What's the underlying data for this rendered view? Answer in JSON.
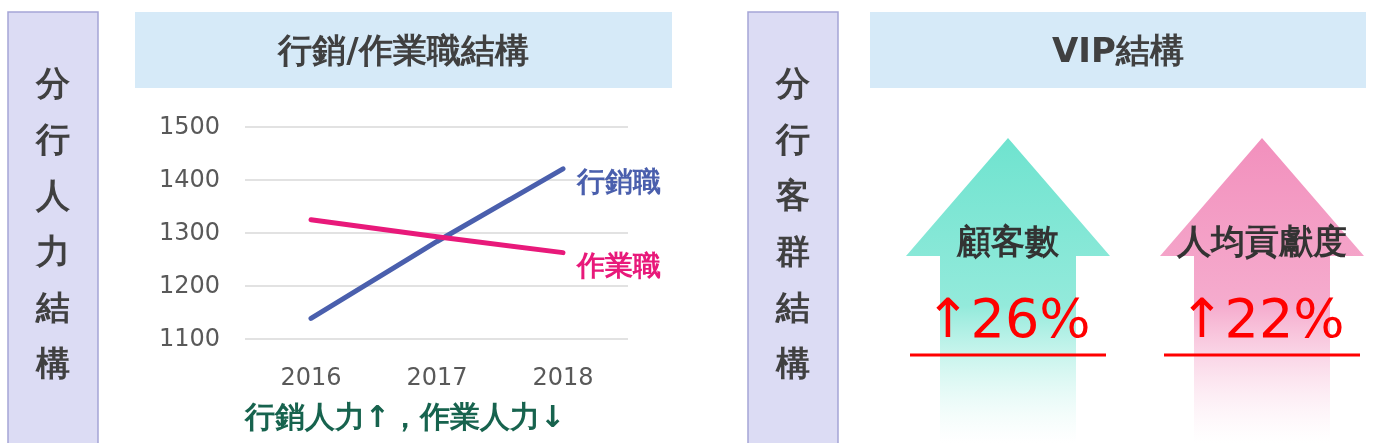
{
  "chart_data": [
    {
      "type": "line",
      "title": "行銷/作業職結構",
      "categories": [
        "2016",
        "2017",
        "2018"
      ],
      "ylim": [
        1100,
        1500
      ],
      "yticks": [
        1100,
        1200,
        1300,
        1400,
        1500
      ],
      "grid": "y",
      "series": [
        {
          "name": "行銷職",
          "color": "#4a5fad",
          "values": [
            1139,
            1284,
            1421
          ]
        },
        {
          "name": "作業職",
          "color": "#e8197a",
          "values": [
            1325,
            1293,
            1263
          ]
        }
      ],
      "annotations": [
        "分行人力結構",
        "行銷人力↑，作業人力↓"
      ]
    },
    {
      "type": "other",
      "title": "VIP結構",
      "categories": [
        "顧客數",
        "人均貢獻度"
      ],
      "value_labels": [
        "↑26%",
        "↑22%"
      ],
      "colors": [
        "#6fe3cf",
        "#f290bd"
      ],
      "annotations": [
        "分行客群結構"
      ]
    }
  ]
}
